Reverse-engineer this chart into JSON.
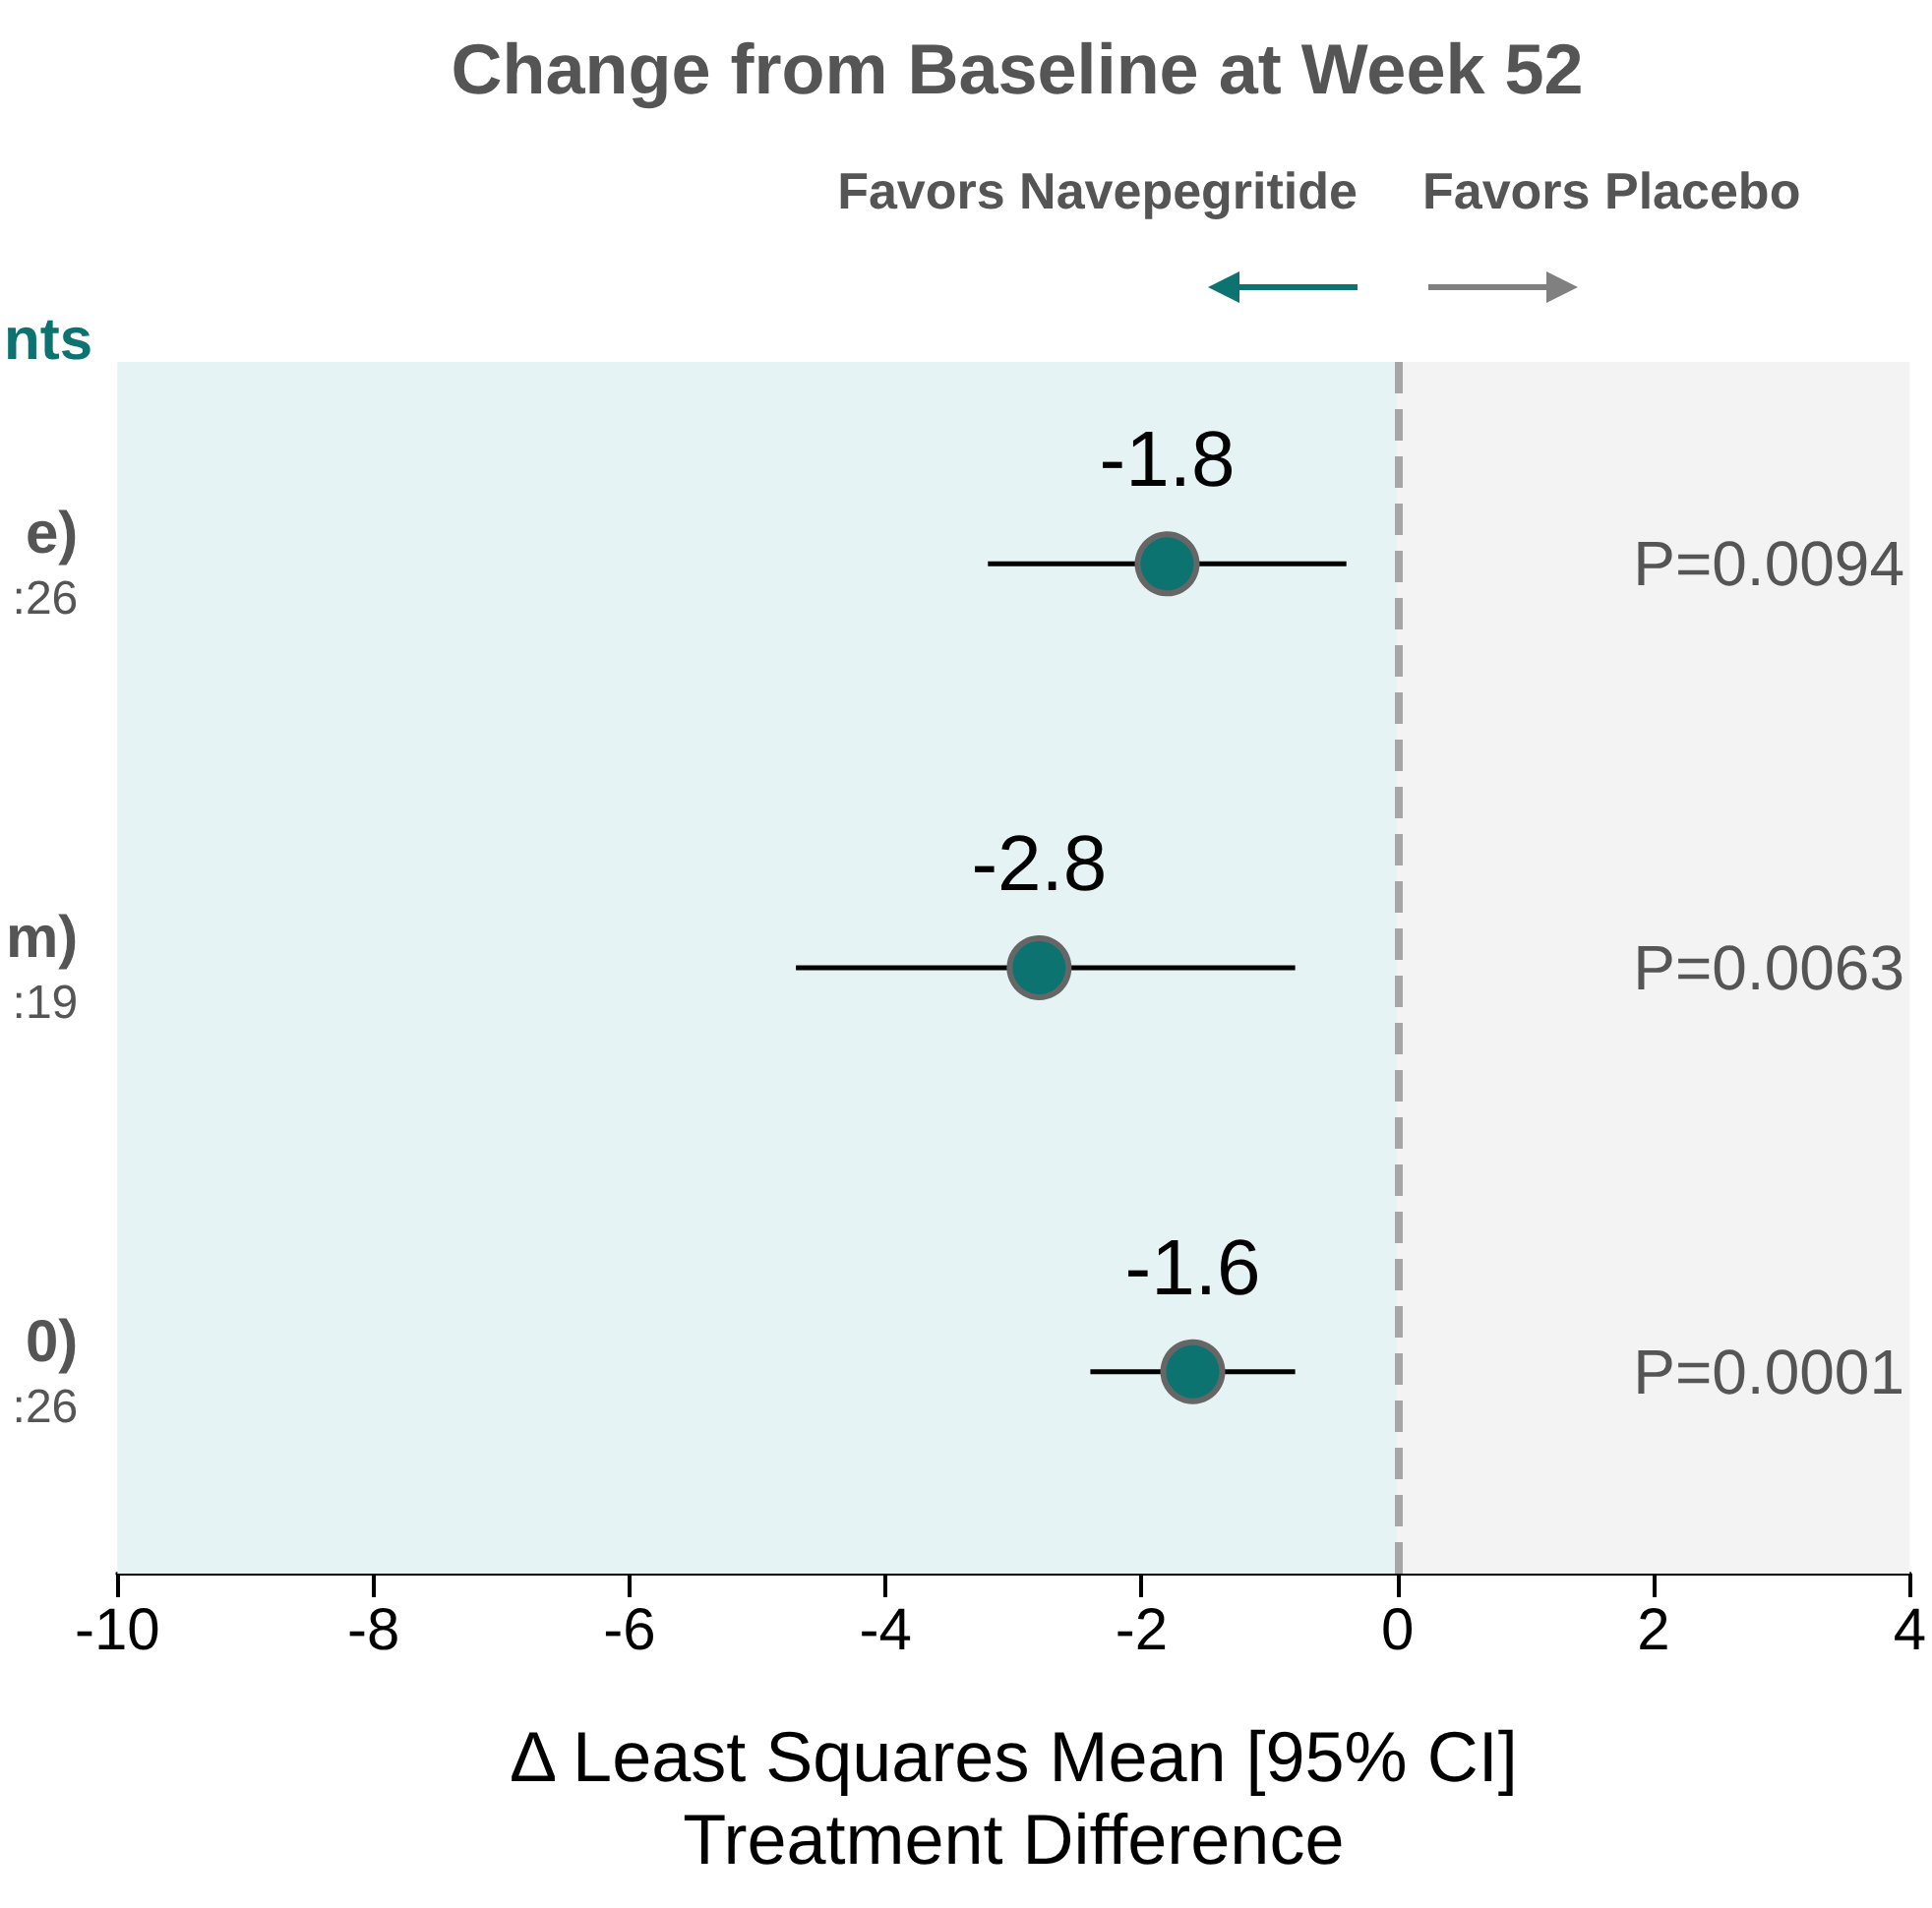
{
  "chart_data": {
    "type": "scatter",
    "orientation": "horizontal",
    "title": "Change from Baseline at Week 52",
    "xlabel": "Δ Least Squares Mean [95% CI]\nTreatment Difference",
    "categories": [
      "e)\n:26",
      "m)\n:19",
      "0)\n:26"
    ],
    "values": [
      -1.8,
      -2.8,
      -1.6
    ],
    "color": "#0d7370",
    "errors": [
      [
        -3.2,
        -0.4
      ],
      [
        -4.7,
        -0.8
      ],
      [
        -2.4,
        -0.8
      ]
    ],
    "data_labels": true,
    "marker": "circle",
    "xlim": [
      -10,
      4
    ],
    "xticks": [
      -10,
      -8,
      -6,
      -4,
      -2,
      0,
      2,
      4
    ],
    "grid": false,
    "ref_lines": [
      {
        "axis": "x",
        "value": 0,
        "label": null,
        "color": "#a6a6a6",
        "line_style": "dashed"
      }
    ],
    "bands": [
      {
        "axis": "x",
        "from": -10,
        "to": 0,
        "label": null,
        "color": "#e5f3f4"
      },
      {
        "axis": "x",
        "from": 0,
        "to": 4,
        "label": null,
        "color": "#f3f3f3"
      }
    ],
    "annotations": [
      "Favors Navepegritide",
      "Favors Placebo",
      "nts",
      "P=0.0094",
      "P=0.0063",
      "P=0.0001"
    ]
  }
}
